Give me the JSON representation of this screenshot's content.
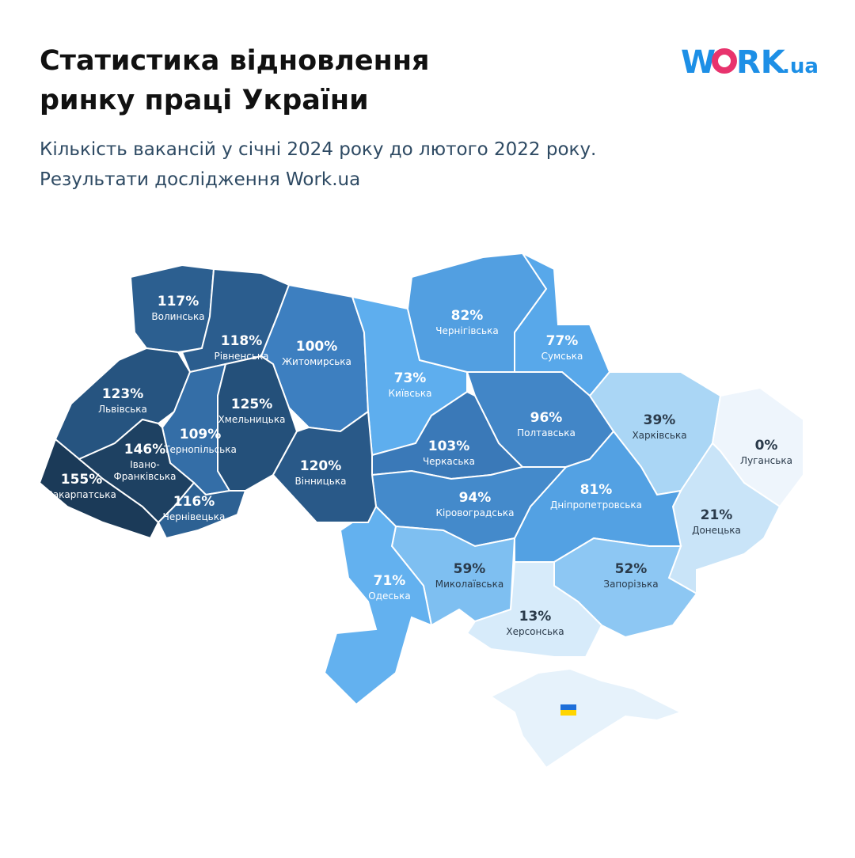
{
  "chart_data": {
    "type": "choropleth",
    "title": [
      "Статистика відновлення",
      "ринку праці України"
    ],
    "subtitle": [
      "Кількість вакансій у січні 2024 року до лютого 2022 року.",
      "Результати дослідження Work.ua"
    ],
    "logo": [
      "W",
      "RK",
      ".ua"
    ],
    "categories": [
      "Волинська",
      "Рівненська",
      "Житомирська",
      "Київська",
      "Чернігівська",
      "Сумська",
      "Полтавська",
      "Черкаська",
      "Харківська",
      "Луганська",
      "Донецька",
      "Дніпропетровська",
      "Кіровоградська",
      "Миколаївська",
      "Одеська",
      "Запорізька",
      "Херсонська",
      "Львівська",
      "Тернопільська",
      "Хмельницька",
      "Вінницька",
      "Закарпатська",
      "Івано-Франківська",
      "Чернівецька"
    ],
    "values": [
      117,
      118,
      100,
      73,
      82,
      77,
      96,
      103,
      39,
      0,
      21,
      81,
      94,
      59,
      71,
      52,
      13,
      123,
      109,
      125,
      120,
      155,
      146,
      116
    ],
    "value_labels": [
      "117%",
      "118%",
      "100%",
      "73%",
      "82%",
      "77%",
      "96%",
      "103%",
      "39%",
      "0%",
      "21%",
      "81%",
      "94%",
      "59%",
      "71%",
      "52%",
      "13%",
      "123%",
      "109%",
      "125%",
      "120%",
      "155%",
      "146%",
      "116%"
    ]
  }
}
